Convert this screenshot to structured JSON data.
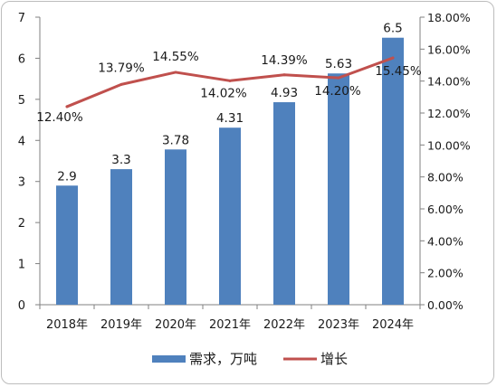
{
  "chart_data": {
    "type": "bar",
    "title": "",
    "xlabel": "",
    "ylabel": "",
    "categories": [
      "2018年",
      "2019年",
      "2020年",
      "2021年",
      "2022年",
      "2023年",
      "2024年"
    ],
    "series": [
      {
        "name": "需求，万吨",
        "type": "bar",
        "axis": "left",
        "color": "#4f81bd",
        "values": [
          2.9,
          3.3,
          3.78,
          4.31,
          4.93,
          5.63,
          6.5
        ],
        "labels": [
          "2.9",
          "3.3",
          "3.78",
          "4.31",
          "4.93",
          "5.63",
          "6.5"
        ]
      },
      {
        "name": "增长",
        "type": "line",
        "axis": "right",
        "color": "#c0504d",
        "values": [
          12.4,
          13.79,
          14.55,
          14.02,
          14.39,
          14.2,
          15.45
        ],
        "labels": [
          "12.40%",
          "13.79%",
          "14.55%",
          "14.02%",
          "14.39%",
          "14.20%",
          "15.45%"
        ]
      }
    ],
    "ylim": [
      0,
      7
    ],
    "yticks": [
      "0",
      "1",
      "2",
      "3",
      "4",
      "5",
      "6",
      "7"
    ],
    "y2lim": [
      0,
      18
    ],
    "y2ticks": [
      "0.00%",
      "2.00%",
      "4.00%",
      "6.00%",
      "8.00%",
      "10.00%",
      "12.00%",
      "14.00%",
      "16.00%",
      "18.00%"
    ],
    "grid": false,
    "legend": "bottom"
  }
}
